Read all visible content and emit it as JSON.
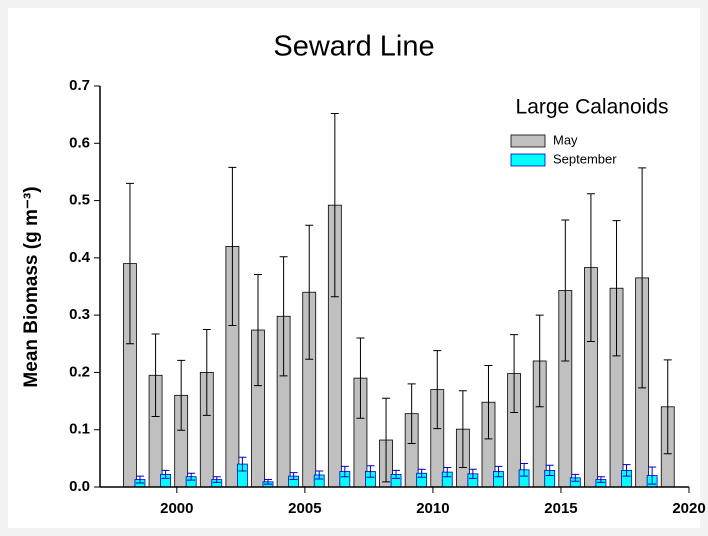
{
  "chart_data": {
    "type": "bar",
    "title": "Seward Line",
    "y_label": "Mean Biomass (g m⁻³)",
    "legend_title": "Large Calanoids",
    "x": [
      1998,
      1999,
      2000,
      2001,
      2002,
      2003,
      2004,
      2005,
      2006,
      2007,
      2008,
      2009,
      2010,
      2011,
      2012,
      2013,
      2014,
      2015,
      2016,
      2017,
      2018,
      2019
    ],
    "series": [
      {
        "name": "May",
        "color": "#c0c0c0",
        "edge": "#000000",
        "values": [
          0.39,
          0.195,
          0.16,
          0.2,
          0.42,
          0.274,
          0.298,
          0.34,
          0.492,
          0.19,
          0.082,
          0.128,
          0.17,
          0.101,
          0.148,
          0.198,
          0.22,
          0.343,
          0.383,
          0.347,
          0.365,
          0.14
        ],
        "errors": [
          0.14,
          0.072,
          0.061,
          0.075,
          0.138,
          0.097,
          0.104,
          0.117,
          0.16,
          0.07,
          0.073,
          0.052,
          0.068,
          0.067,
          0.064,
          0.068,
          0.08,
          0.123,
          0.129,
          0.118,
          0.192,
          0.082
        ]
      },
      {
        "name": "September",
        "color": "#00ffff",
        "edge": "#0000cc",
        "values": [
          0.013,
          0.022,
          0.018,
          0.013,
          0.04,
          0.009,
          0.019,
          0.021,
          0.027,
          0.027,
          0.022,
          0.024,
          0.026,
          0.023,
          0.027,
          0.03,
          0.029,
          0.016,
          0.013,
          0.029,
          0.02,
          null
        ],
        "errors": [
          0.006,
          0.007,
          0.006,
          0.005,
          0.012,
          0.004,
          0.006,
          0.007,
          0.009,
          0.01,
          0.007,
          0.007,
          0.008,
          0.008,
          0.009,
          0.011,
          0.009,
          0.006,
          0.005,
          0.01,
          0.015,
          null
        ]
      }
    ],
    "xlim": [
      1997,
      2020
    ],
    "xticks": [
      2000,
      2005,
      2010,
      2015,
      2020
    ],
    "ylim": [
      0,
      0.7
    ],
    "yticks": [
      {
        "value": 0,
        "label": "0.0"
      },
      0.1,
      0.2,
      0.3,
      0.4,
      0.5,
      0.6,
      0.7
    ],
    "legend": "top-right"
  }
}
